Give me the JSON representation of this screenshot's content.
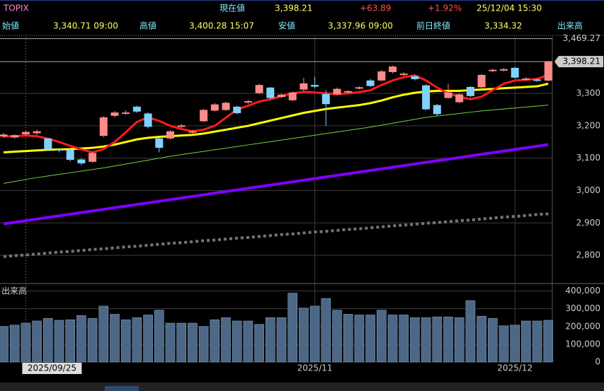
{
  "header": {
    "name": "TOPIX",
    "price_label": "現在値",
    "price": "3,398.21",
    "change": "+63.89",
    "change_pct": "+1.92%",
    "time": "25/12/04 15:30",
    "stats": [
      {
        "label": "始値",
        "value": "3,340.71 09:00"
      },
      {
        "label": "高値",
        "value": "3,400.28 15:07"
      },
      {
        "label": "安値",
        "value": "3,337.96 09:00"
      },
      {
        "label": "前日終値",
        "value": "3,334.32"
      }
    ],
    "volume_label": "出来高"
  },
  "chart_data": [
    {
      "type": "candlestick",
      "categories": [
        null,
        null,
        "2025/09/25",
        null,
        null,
        null,
        null,
        null,
        null,
        null,
        null,
        null,
        null,
        null,
        null,
        null,
        null,
        null,
        null,
        null,
        null,
        null,
        null,
        null,
        null,
        null,
        null,
        null,
        "2025/11",
        null,
        null,
        null,
        null,
        null,
        null,
        null,
        null,
        null,
        null,
        null,
        null,
        null,
        null,
        null,
        null,
        null,
        "2025/12",
        null,
        null,
        null
      ],
      "open": [
        3168,
        3165,
        3175,
        3178,
        3160,
        3127,
        3125,
        3095,
        3090,
        3170,
        3232,
        3238,
        3258,
        3237,
        3160,
        3162,
        3198,
        3180,
        3215,
        3248,
        3250,
        3258,
        3273,
        3302,
        3317,
        3290,
        3280,
        3313,
        3325,
        3297,
        3298,
        3304,
        3316,
        3339,
        3341,
        3367,
        3358,
        3352,
        3324,
        3263,
        3287,
        3274,
        3319,
        3320,
        3370,
        3372,
        3378,
        3344,
        3342,
        3340.71
      ],
      "high": [
        3178,
        3174,
        3184,
        3188,
        3162,
        3131,
        3128,
        3100,
        3120,
        3230,
        3246,
        3248,
        3262,
        3242,
        3165,
        3186,
        3206,
        3188,
        3252,
        3270,
        3274,
        3262,
        3280,
        3330,
        3320,
        3300,
        3306,
        3348,
        3352,
        3310,
        3318,
        3310,
        3322,
        3345,
        3372,
        3386,
        3366,
        3356,
        3328,
        3268,
        3330,
        3300,
        3322,
        3360,
        3376,
        3378,
        3382,
        3350,
        3346,
        3400.28
      ],
      "low": [
        3163,
        3160,
        3170,
        3172,
        3122,
        3118,
        3090,
        3078,
        3086,
        3165,
        3226,
        3234,
        3240,
        3192,
        3118,
        3158,
        3194,
        3175,
        3212,
        3244,
        3246,
        3236,
        3268,
        3298,
        3282,
        3286,
        3276,
        3308,
        3316,
        3200,
        3294,
        3300,
        3312,
        3320,
        3338,
        3362,
        3354,
        3340,
        3248,
        3230,
        3284,
        3270,
        3288,
        3316,
        3366,
        3368,
        3346,
        3340,
        3336,
        3337.96
      ],
      "close": [
        3172,
        3170,
        3180,
        3182,
        3128,
        3125,
        3096,
        3085,
        3115,
        3225,
        3240,
        3240,
        3245,
        3198,
        3133,
        3182,
        3200,
        3182,
        3248,
        3265,
        3270,
        3240,
        3275,
        3325,
        3287,
        3295,
        3302,
        3330,
        3322,
        3268,
        3313,
        3306,
        3318,
        3324,
        3367,
        3382,
        3360,
        3345,
        3252,
        3237,
        3302,
        3296,
        3293,
        3356,
        3372,
        3374,
        3350,
        3345,
        3340,
        3398.21
      ],
      "up_color": "#ff8a8a",
      "down_color": "#7fd2ff",
      "series": [
        {
          "color": "#6e7a72",
          "style": "dotted",
          "width": 4,
          "values": [
            2796,
            2799,
            2801,
            2804,
            2807,
            2810,
            2812,
            2815,
            2818,
            2820,
            2823,
            2826,
            2828,
            2831,
            2834,
            2837,
            2839,
            2842,
            2845,
            2847,
            2850,
            2853,
            2855,
            2858,
            2861,
            2864,
            2866,
            2869,
            2872,
            2874,
            2877,
            2880,
            2882,
            2885,
            2888,
            2891,
            2893,
            2896,
            2899,
            2901,
            2904,
            2907,
            2909,
            2912,
            2915,
            2918,
            2920,
            2923,
            2926,
            2928
          ]
        },
        {
          "color": "#8000ff",
          "style": "solid",
          "width": 4,
          "values": [
            2897,
            2902,
            2907,
            2912,
            2917,
            2922,
            2927,
            2932,
            2937,
            2942,
            2947,
            2952,
            2957,
            2962,
            2967,
            2972,
            2977,
            2982,
            2987,
            2992,
            2997,
            3002,
            3007,
            3012,
            3017,
            3022,
            3027,
            3032,
            3037,
            3042,
            3047,
            3052,
            3057,
            3062,
            3067,
            3072,
            3077,
            3082,
            3087,
            3092,
            3097,
            3102,
            3107,
            3112,
            3117,
            3122,
            3127,
            3132,
            3137,
            3142
          ]
        },
        {
          "color": "#7ccf3a",
          "style": "solid",
          "width": 1,
          "values": [
            3022,
            3028,
            3034,
            3040,
            3045,
            3050,
            3055,
            3060,
            3065,
            3070,
            3076,
            3082,
            3088,
            3094,
            3100,
            3106,
            3111,
            3116,
            3121,
            3126,
            3131,
            3136,
            3141,
            3146,
            3151,
            3156,
            3161,
            3166,
            3171,
            3176,
            3181,
            3186,
            3191,
            3196,
            3202,
            3208,
            3214,
            3220,
            3226,
            3230,
            3234,
            3238,
            3242,
            3246,
            3249,
            3252,
            3255,
            3258,
            3261,
            3264
          ]
        },
        {
          "color": "#ffff00",
          "style": "solid",
          "width": 3,
          "values": [
            3118,
            3120,
            3122,
            3124,
            3126,
            3127,
            3128,
            3130,
            3132,
            3136,
            3142,
            3150,
            3158,
            3163,
            3166,
            3168,
            3170,
            3172,
            3176,
            3182,
            3188,
            3194,
            3200,
            3208,
            3216,
            3224,
            3232,
            3240,
            3246,
            3252,
            3256,
            3260,
            3264,
            3270,
            3278,
            3288,
            3296,
            3302,
            3306,
            3308,
            3308,
            3308,
            3310,
            3312,
            3314,
            3316,
            3318,
            3320,
            3322,
            3330
          ]
        },
        {
          "color": "#ff1a1a",
          "style": "solid",
          "width": 3,
          "values": [
            3167,
            3168,
            3170,
            3168,
            3160,
            3150,
            3138,
            3127,
            3118,
            3128,
            3150,
            3180,
            3212,
            3226,
            3215,
            3200,
            3190,
            3183,
            3188,
            3200,
            3225,
            3250,
            3262,
            3275,
            3282,
            3292,
            3300,
            3305,
            3303,
            3300,
            3298,
            3300,
            3304,
            3310,
            3326,
            3340,
            3350,
            3356,
            3340,
            3318,
            3300,
            3290,
            3282,
            3290,
            3310,
            3330,
            3340,
            3342,
            3345,
            3357
          ]
        }
      ],
      "ylim": [
        2715,
        3475
      ],
      "yticks": [
        {
          "value": 2800,
          "label": "2,800"
        },
        {
          "value": 2900,
          "label": "2,900"
        },
        {
          "value": 3000,
          "label": "3,000"
        },
        {
          "value": 3100,
          "label": "3,100"
        },
        {
          "value": 3200,
          "label": "3,200"
        },
        {
          "value": 3300,
          "label": "3,300"
        }
      ],
      "ref_lines": [
        {
          "value": 3469.27,
          "label": "3,469.27",
          "style": "plain"
        },
        {
          "value": 3398.21,
          "label": "3,398.21",
          "style": "box"
        }
      ],
      "grid": true
    },
    {
      "type": "bar",
      "title": "出来高",
      "color": "#4d6786",
      "values": [
        200000,
        208000,
        219000,
        231000,
        246000,
        235000,
        238000,
        262000,
        246000,
        315000,
        269000,
        238000,
        250000,
        265000,
        292000,
        219000,
        219000,
        219000,
        200000,
        238000,
        250000,
        231000,
        231000,
        212000,
        250000,
        250000,
        388000,
        304000,
        315000,
        358000,
        292000,
        269000,
        265000,
        265000,
        292000,
        265000,
        265000,
        250000,
        250000,
        254000,
        254000,
        250000,
        346000,
        258000,
        246000,
        204000,
        208000,
        231000,
        231000,
        235000
      ],
      "ylim": [
        0,
        430000
      ],
      "yticks": [
        0,
        {
          "value": 100000,
          "label": "100,000"
        },
        {
          "value": 200000,
          "label": "200,000"
        },
        {
          "value": 300000,
          "label": "300,000"
        },
        {
          "value": 400000,
          "label": "400,000"
        }
      ],
      "grid": true
    }
  ]
}
